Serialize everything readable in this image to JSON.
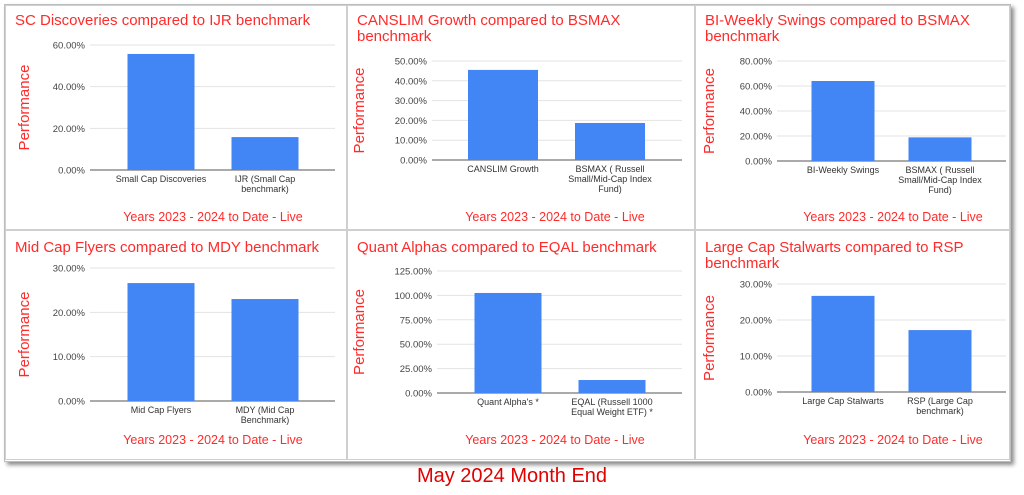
{
  "colors": {
    "title": "#ff2a2a",
    "bar": "#4285f4",
    "grid": "#e3e3e3",
    "axis": "#555555",
    "footer": "#e00000"
  },
  "footer": "May 2024 Month End",
  "chart_data": [
    {
      "type": "bar",
      "title": "SC Discoveries compared to IJR benchmark",
      "ylabel": "Performance",
      "xlabel": "Years 2023 - 2024 to Date - Live",
      "categories": [
        "Small Cap Discoveries",
        "IJR (Small Cap benchmark)"
      ],
      "values": [
        55.7,
        15.8
      ],
      "ylim": [
        0,
        60
      ],
      "yticks": [
        "0.00%",
        "20.00%",
        "40.00%",
        "60.00%"
      ],
      "grid": true
    },
    {
      "type": "bar",
      "title": "CANSLIM Growth compared to BSMAX benchmark",
      "ylabel": "Performance",
      "xlabel": "Years 2023 - 2024 to Date - Live",
      "categories": [
        "CANSLIM Growth",
        "BSMAX ( Russell Small/Mid-Cap Index Fund)"
      ],
      "values": [
        45.5,
        18.7
      ],
      "ylim": [
        0,
        50
      ],
      "yticks": [
        "0.00%",
        "10.00%",
        "20.00%",
        "30.00%",
        "40.00%",
        "50.00%"
      ],
      "grid": true
    },
    {
      "type": "bar",
      "title": "BI-Weekly Swings compared to BSMAX benchmark",
      "ylabel": "Performance",
      "xlabel": "Years 2023 - 2024 to Date - Live",
      "categories": [
        "BI-Weekly Swings",
        "BSMAX ( Russell Small/Mid-Cap Index Fund)"
      ],
      "values": [
        64.0,
        18.9
      ],
      "ylim": [
        0,
        80
      ],
      "yticks": [
        "0.00%",
        "20.00%",
        "40.00%",
        "60.00%",
        "80.00%"
      ],
      "grid": true
    },
    {
      "type": "bar",
      "title": "Mid Cap Flyers compared to MDY benchmark",
      "ylabel": "Performance",
      "xlabel": "Years 2023 - 2024 to Date - Live",
      "categories": [
        "Mid Cap Flyers",
        "MDY (Mid Cap Benchmark)"
      ],
      "values": [
        26.6,
        23.0
      ],
      "ylim": [
        0,
        30
      ],
      "yticks": [
        "0.00%",
        "10.00%",
        "20.00%",
        "30.00%"
      ],
      "grid": true
    },
    {
      "type": "bar",
      "title": "Quant Alphas compared to EQAL benchmark",
      "ylabel": "Performance",
      "xlabel": "Years 2023 - 2024 to Date - Live",
      "categories": [
        "Quant Alpha's   *",
        "EQAL (Russell 1000 Equal Weight ETF)  *"
      ],
      "values": [
        102.5,
        13.3
      ],
      "ylim": [
        0,
        125
      ],
      "yticks": [
        "0.00%",
        "25.00%",
        "50.00%",
        "75.00%",
        "100.00%",
        "125.00%"
      ],
      "grid": true
    },
    {
      "type": "bar",
      "title": "Large Cap Stalwarts compared to RSP benchmark",
      "ylabel": "Performance",
      "xlabel": "Years 2023 - 2024 to Date - Live",
      "categories": [
        "Large Cap Stalwarts",
        "RSP (Large Cap benchmark)"
      ],
      "values": [
        26.7,
        17.2
      ],
      "ylim": [
        0,
        30
      ],
      "yticks": [
        "0.00%",
        "10.00%",
        "20.00%",
        "30.00%"
      ],
      "grid": true
    }
  ]
}
